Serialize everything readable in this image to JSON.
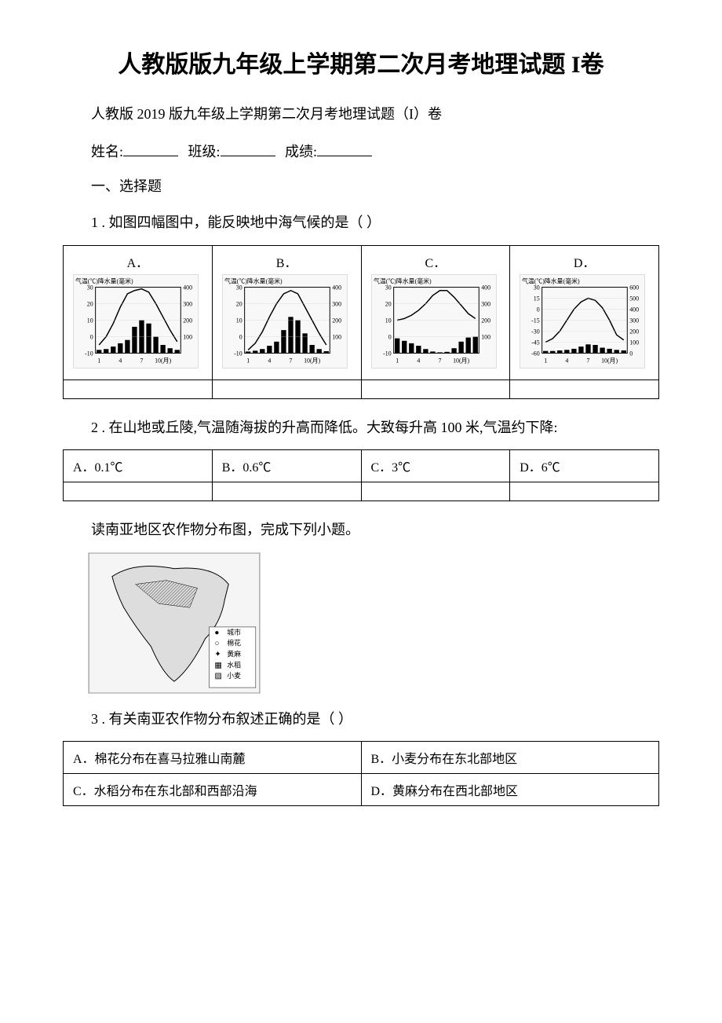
{
  "title": "人教版版九年级上学期第二次月考地理试题 I卷",
  "subtitle": "人教版 2019 版九年级上学期第二次月考地理试题（I）卷",
  "info": {
    "name_label": "姓名:",
    "class_label": "班级:",
    "score_label": "成绩:"
  },
  "section1": "一、选择题",
  "q1": {
    "text": "1 . 如图四幅图中，能反映地中海气候的是（ ）",
    "options": [
      "A．",
      "B．",
      "C．",
      "D．"
    ],
    "charts": [
      {
        "axis_left_label": "气温(℃)降水量(毫米)",
        "temp_y": [
          30,
          20,
          10,
          0,
          -10
        ],
        "precip_y": [
          400,
          300,
          200,
          100
        ],
        "x_labels": [
          "1",
          "4",
          "7",
          "10(月)"
        ],
        "temp_curve": [
          -5,
          0,
          8,
          18,
          26,
          28,
          29,
          27,
          20,
          12,
          4,
          -3
        ],
        "precip_bars": [
          20,
          25,
          40,
          60,
          80,
          160,
          200,
          180,
          100,
          50,
          30,
          20
        ],
        "bar_color": "#000000",
        "line_color": "#000000",
        "bg_color": "#ffffff"
      },
      {
        "axis_left_label": "气温(℃)降水量(毫米)",
        "temp_y": [
          30,
          20,
          10,
          0,
          -10
        ],
        "precip_y": [
          400,
          300,
          200,
          100
        ],
        "x_labels": [
          "1",
          "4",
          "7",
          "10(月)"
        ],
        "temp_curve": [
          -8,
          -4,
          3,
          12,
          20,
          26,
          28,
          26,
          18,
          10,
          2,
          -5
        ],
        "precip_bars": [
          10,
          15,
          25,
          45,
          70,
          140,
          220,
          200,
          120,
          50,
          25,
          12
        ],
        "bar_color": "#000000",
        "line_color": "#000000",
        "bg_color": "#ffffff"
      },
      {
        "axis_left_label": "气温(℃)降水量(毫米)",
        "temp_y": [
          30,
          20,
          10,
          0,
          -10
        ],
        "precip_y": [
          400,
          300,
          200,
          100
        ],
        "x_labels": [
          "1",
          "4",
          "7",
          "10(月)"
        ],
        "temp_curve": [
          10,
          11,
          13,
          16,
          20,
          25,
          28,
          28,
          24,
          19,
          14,
          11
        ],
        "precip_bars": [
          90,
          75,
          60,
          45,
          25,
          10,
          5,
          8,
          30,
          70,
          95,
          100
        ],
        "bar_color": "#000000",
        "line_color": "#000000",
        "bg_color": "#ffffff"
      },
      {
        "axis_left_label": "气温(℃)降水量(毫米)",
        "temp_y": [
          30,
          15,
          0,
          -15,
          -30,
          -45,
          -60
        ],
        "precip_y": [
          600,
          500,
          400,
          300,
          200,
          100,
          0
        ],
        "x_labels": [
          "1",
          "4",
          "7",
          "10(月)"
        ],
        "temp_curve": [
          -45,
          -40,
          -30,
          -15,
          0,
          10,
          15,
          12,
          2,
          -15,
          -35,
          -42
        ],
        "precip_bars": [
          20,
          20,
          25,
          30,
          40,
          60,
          80,
          75,
          50,
          40,
          30,
          25
        ],
        "bar_color": "#000000",
        "line_color": "#000000",
        "bg_color": "#ffffff"
      }
    ]
  },
  "q2": {
    "text": "2 . 在山地或丘陵,气温随海拔的升高而降低。大致每升高 100 米,气温约下降:",
    "options": [
      "A．0.1℃",
      "B．0.6℃",
      "C．3℃",
      "D．6℃"
    ]
  },
  "intro_q3": "读南亚地区农作物分布图，完成下列小题。",
  "map": {
    "legend": [
      {
        "symbol": "●",
        "label": "城市"
      },
      {
        "symbol": "○",
        "label": "棉花"
      },
      {
        "symbol": "✦",
        "label": "黄麻"
      },
      {
        "symbol": "▦",
        "label": "水稻"
      },
      {
        "symbol": "▨",
        "label": "小麦"
      }
    ]
  },
  "q3": {
    "text": "3 . 有关南亚农作物分布叙述正确的是（ ）",
    "options": [
      "A．棉花分布在喜马拉雅山南麓",
      "B．小麦分布在东北部地区",
      "C．水稻分布在东北部和西部沿海",
      "D．黄麻分布在西北部地区"
    ]
  },
  "colors": {
    "text": "#000000",
    "border": "#000000",
    "bg": "#ffffff"
  }
}
